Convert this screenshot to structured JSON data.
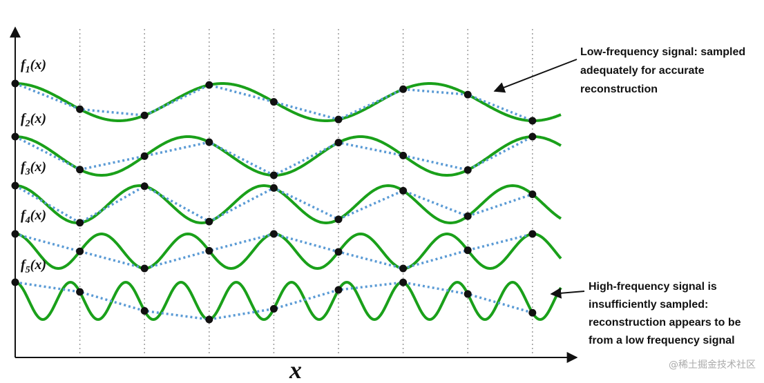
{
  "diagram": {
    "signals": [
      {
        "name": "f",
        "index": "1",
        "arg": "(x)"
      },
      {
        "name": "f",
        "index": "2",
        "arg": "(x)"
      },
      {
        "name": "f",
        "index": "3",
        "arg": "(x)"
      },
      {
        "name": "f",
        "index": "4",
        "arg": "(x)"
      },
      {
        "name": "f",
        "index": "5",
        "arg": "(x)"
      }
    ],
    "axis_label": "x",
    "annotations": [
      {
        "lines": [
          "Low-frequency signal: sampled",
          "adequately for accurate",
          "reconstruction"
        ]
      },
      {
        "lines": [
          "High-frequency signal is",
          "insufficiently sampled:",
          "reconstruction appears to be",
          "from a low frequency signal"
        ]
      }
    ],
    "watermark": "@稀土掘金技术社区"
  }
}
